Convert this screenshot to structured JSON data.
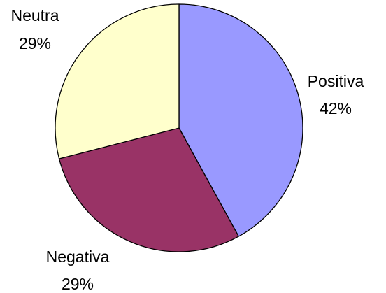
{
  "chart_data": {
    "type": "pie",
    "title": "",
    "legend": "none",
    "slices": [
      {
        "label": "Positiva",
        "value": 42,
        "value_label": "42%",
        "color": "#9999ff"
      },
      {
        "label": "Negativa",
        "value": 29,
        "value_label": "29%",
        "color": "#993366"
      },
      {
        "label": "Neutra",
        "value": 29,
        "value_label": "29%",
        "color": "#ffffcc"
      }
    ]
  }
}
